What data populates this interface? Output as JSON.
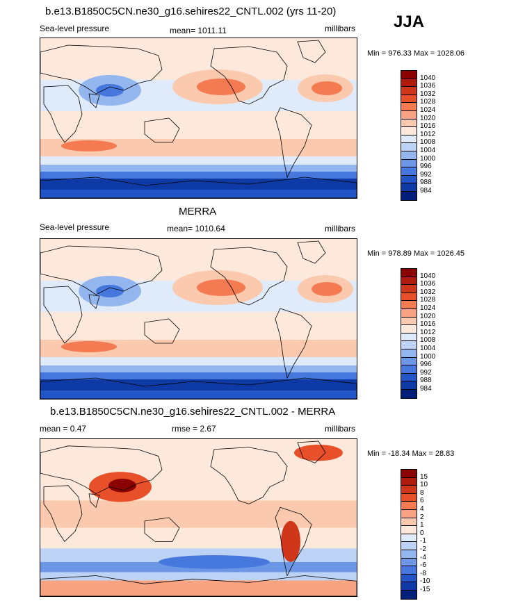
{
  "season": "JJA",
  "panels": [
    {
      "title": "b.e13.B1850C5CN.ne30_g16.sehires22_CNTL.002 (yrs 11-20)",
      "left": "Sea-level pressure",
      "center": "mean= 1011.11",
      "right": "millibars",
      "minmax": "Min = 976.33 Max = 1028.06",
      "kind": "abs"
    },
    {
      "title": "MERRA",
      "left": "Sea-level pressure",
      "center": "mean= 1010.64",
      "right": "millibars",
      "minmax": "Min = 978.89 Max = 1026.45",
      "kind": "abs"
    },
    {
      "title": "b.e13.B1850C5CN.ne30_g16.sehires22_CNTL.002 - MERRA",
      "left": "mean =   0.47",
      "center": "rmse =   2.67",
      "right": "millibars",
      "minmax": "Min = -18.34 Max =  28.83",
      "kind": "diff"
    }
  ],
  "colorbars": {
    "abs": {
      "labels": [
        "1040",
        "1036",
        "1032",
        "1028",
        "1024",
        "1020",
        "1016",
        "1012",
        "1008",
        "1004",
        "1000",
        "996",
        "992",
        "988",
        "984"
      ],
      "colors": [
        "#8b0000",
        "#b01a0a",
        "#d0361a",
        "#e8502a",
        "#f47a52",
        "#f8a382",
        "#fbc9ad",
        "#fde8dc",
        "#dfeafa",
        "#bcd3f5",
        "#94b6ef",
        "#6c97e7",
        "#4577dd",
        "#2155c8",
        "#0d3aa5",
        "#001f7a"
      ]
    },
    "diff": {
      "labels": [
        "15",
        "10",
        "8",
        "6",
        "4",
        "2",
        "1",
        "0",
        "-1",
        "-2",
        "-4",
        "-6",
        "-8",
        "-10",
        "-15"
      ],
      "colors": [
        "#8b0000",
        "#b01a0a",
        "#d0361a",
        "#e8502a",
        "#f47a52",
        "#f8a382",
        "#fbc9ad",
        "#fde8dc",
        "#dfeafa",
        "#bcd3f5",
        "#94b6ef",
        "#6c97e7",
        "#4577dd",
        "#2155c8",
        "#0d3aa5",
        "#001f7a"
      ]
    }
  }
}
